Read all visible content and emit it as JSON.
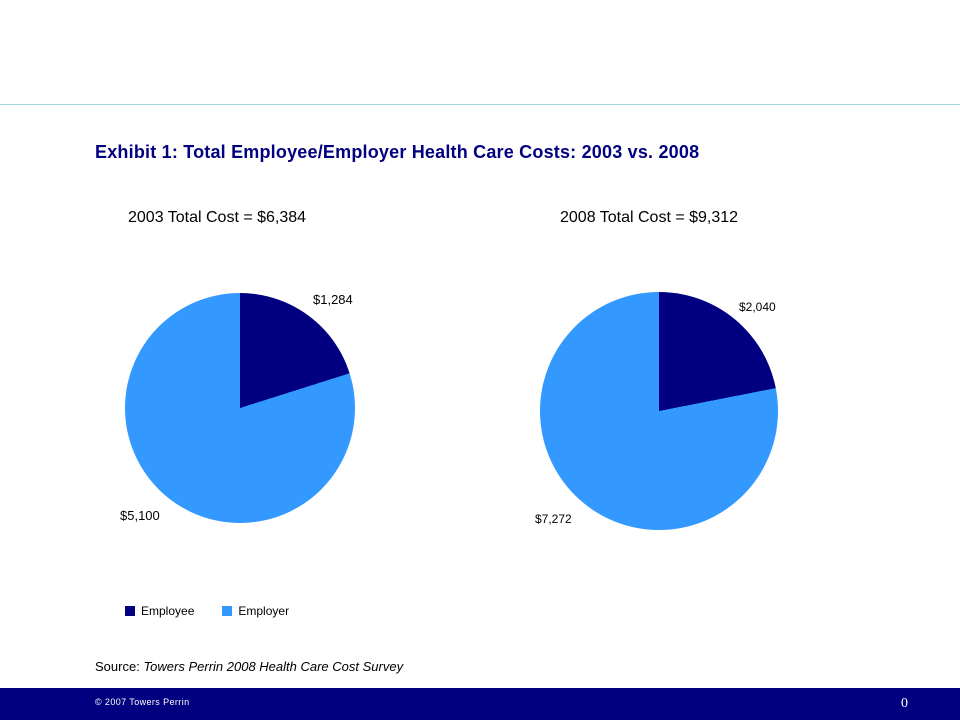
{
  "slide": {
    "title": "Exhibit 1: Total Employee/Employer Health Care Costs: 2003 vs. 2008",
    "source_label": "Source:",
    "source_text": "Towers Perrin 2008 Health Care Cost Survey",
    "footer": {
      "copyright": "© 2007 Towers Perrin",
      "page_number": "0"
    }
  },
  "colors": {
    "title_text": "#000080",
    "employee": "#000080",
    "employer": "#3399FF",
    "divider": "#A3D4E4",
    "footer_bg": "#000080",
    "footer_text": "#FFFFFF"
  },
  "legend": [
    {
      "label": "Employee",
      "color": "#000080"
    },
    {
      "label": "Employer",
      "color": "#3399FF"
    }
  ],
  "chart_data": [
    {
      "type": "pie",
      "title": "2003 Total Cost = $6,384",
      "total": 6384,
      "labels": [
        "Employee",
        "Employer"
      ],
      "values": [
        1284,
        5100
      ],
      "value_labels": [
        "$1,284",
        "$5,100"
      ],
      "start_angle_deg": 0,
      "direction": "clockwise",
      "legend_position": "below"
    },
    {
      "type": "pie",
      "title": "2008 Total Cost = $9,312",
      "total": 9312,
      "labels": [
        "Employee",
        "Employer"
      ],
      "values": [
        2040,
        7272
      ],
      "value_labels": [
        "$2,040",
        "$7,272"
      ],
      "start_angle_deg": 0,
      "direction": "clockwise",
      "legend_position": "below"
    }
  ]
}
